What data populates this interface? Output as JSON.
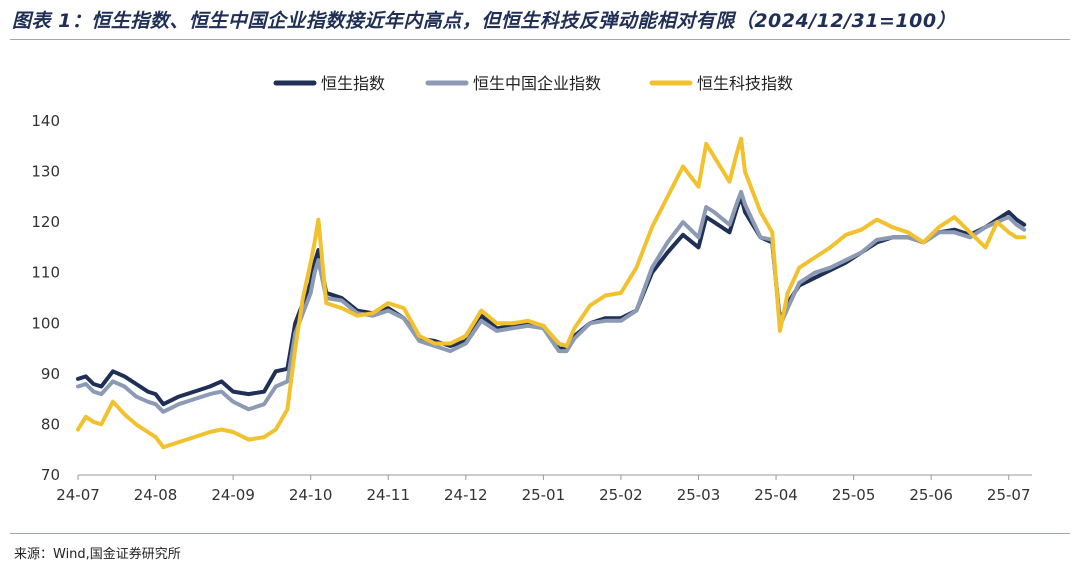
{
  "title": "图表 1：恒生指数、恒生中国企业指数接近年内高点，但恒生科技反弹动能相对有限（2024/12/31=100）",
  "source": "来源：Wind,国金证券研究所",
  "colors": {
    "hsi": "#1f2f56",
    "hscei": "#8c9bb3",
    "hstech": "#f2c12e",
    "axis": "#999999"
  },
  "chart_data": {
    "type": "line",
    "title": "图表 1：恒生指数、恒生中国企业指数接近年内高点，但恒生科技反弹动能相对有限（2024/12/31=100）",
    "xlabel": "",
    "ylabel": "",
    "ylim": [
      70,
      140
    ],
    "yticks": [
      70,
      80,
      90,
      100,
      110,
      120,
      130,
      140
    ],
    "xlim": [
      0,
      12.3
    ],
    "x_tick_positions": [
      0,
      1,
      2,
      3,
      4,
      5,
      6,
      7,
      8,
      9,
      10,
      11,
      12
    ],
    "x_tick_labels": [
      "24-07",
      "24-08",
      "24-09",
      "24-10",
      "24-11",
      "24-12",
      "25-01",
      "25-02",
      "25-03",
      "25-04",
      "25-05",
      "25-06",
      "25-07"
    ],
    "legend": "top-center",
    "series": [
      {
        "name": "恒生指数",
        "color": "#1f2f56",
        "x": [
          0,
          0.1,
          0.2,
          0.3,
          0.45,
          0.6,
          0.75,
          0.9,
          1.0,
          1.1,
          1.3,
          1.5,
          1.7,
          1.85,
          2.0,
          2.2,
          2.4,
          2.55,
          2.7,
          2.8,
          2.9,
          3.0,
          3.05,
          3.1,
          3.2,
          3.4,
          3.6,
          3.8,
          4.0,
          4.2,
          4.4,
          4.6,
          4.8,
          5.0,
          5.2,
          5.4,
          5.6,
          5.8,
          6.0,
          6.2,
          6.3,
          6.4,
          6.6,
          6.8,
          7.0,
          7.2,
          7.4,
          7.6,
          7.8,
          8.0,
          8.1,
          8.2,
          8.4,
          8.5,
          8.55,
          8.6,
          8.8,
          8.95,
          9.05,
          9.15,
          9.3,
          9.5,
          9.7,
          9.9,
          10.1,
          10.3,
          10.5,
          10.7,
          10.9,
          11.1,
          11.3,
          11.5,
          11.7,
          11.85,
          12.0,
          12.1,
          12.2
        ],
        "values": [
          89,
          89.5,
          88,
          87.5,
          90.5,
          89.5,
          88,
          86.5,
          86,
          84,
          85.5,
          86.5,
          87.5,
          88.5,
          86.5,
          86,
          86.5,
          90.5,
          91,
          100,
          104,
          108,
          112,
          114.5,
          106,
          105,
          102.5,
          102,
          103,
          101,
          97,
          96.5,
          95.5,
          96.5,
          101.5,
          99,
          99.5,
          100,
          99.5,
          95,
          95,
          97.5,
          100,
          101,
          101,
          102.5,
          110,
          114,
          117.5,
          115,
          121,
          120,
          118,
          123,
          125,
          122,
          117,
          116,
          100.5,
          104,
          107.5,
          109,
          110.5,
          112,
          114,
          116,
          117,
          117,
          116,
          118,
          118.5,
          117.5,
          119,
          120.5,
          122,
          120.5,
          119.5
        ]
      },
      {
        "name": "恒生中国企业指数",
        "color": "#8c9bb3",
        "x": [
          0,
          0.1,
          0.2,
          0.3,
          0.45,
          0.6,
          0.75,
          0.9,
          1.0,
          1.1,
          1.3,
          1.5,
          1.7,
          1.85,
          2.0,
          2.2,
          2.4,
          2.55,
          2.7,
          2.8,
          2.9,
          3.0,
          3.05,
          3.1,
          3.2,
          3.4,
          3.6,
          3.8,
          4.0,
          4.2,
          4.4,
          4.6,
          4.8,
          5.0,
          5.2,
          5.4,
          5.6,
          5.8,
          6.0,
          6.2,
          6.3,
          6.4,
          6.6,
          6.8,
          7.0,
          7.2,
          7.4,
          7.6,
          7.8,
          8.0,
          8.1,
          8.2,
          8.4,
          8.5,
          8.55,
          8.6,
          8.8,
          8.95,
          9.05,
          9.15,
          9.3,
          9.5,
          9.7,
          9.9,
          10.1,
          10.3,
          10.5,
          10.7,
          10.9,
          11.1,
          11.3,
          11.5,
          11.7,
          11.85,
          12.0,
          12.1,
          12.2
        ],
        "values": [
          87.5,
          88,
          86.5,
          86,
          88.5,
          87.5,
          85.5,
          84.5,
          84,
          82.5,
          84,
          85,
          86,
          86.5,
          84.5,
          83,
          84,
          87.5,
          88.5,
          98,
          102,
          106,
          110,
          112.5,
          105,
          104.5,
          102,
          101.5,
          102.5,
          101,
          96.5,
          95.5,
          94.5,
          96,
          100.5,
          98.5,
          99,
          99.5,
          99,
          94.5,
          94.5,
          97,
          100,
          100.5,
          100.5,
          102.5,
          111,
          116,
          120,
          117,
          123,
          122,
          119.5,
          124,
          126,
          123.5,
          117,
          116.5,
          99.5,
          103,
          108,
          110,
          111,
          112.5,
          114,
          116.5,
          117,
          117,
          116,
          118,
          118,
          117,
          119,
          120,
          121,
          119.5,
          118.5
        ]
      },
      {
        "name": "恒生科技指数",
        "color": "#f2c12e",
        "x": [
          0,
          0.1,
          0.2,
          0.3,
          0.45,
          0.6,
          0.75,
          0.9,
          1.0,
          1.1,
          1.3,
          1.5,
          1.7,
          1.85,
          2.0,
          2.2,
          2.4,
          2.55,
          2.7,
          2.8,
          2.9,
          3.0,
          3.05,
          3.1,
          3.2,
          3.4,
          3.6,
          3.8,
          4.0,
          4.2,
          4.4,
          4.6,
          4.8,
          5.0,
          5.2,
          5.4,
          5.6,
          5.8,
          6.0,
          6.2,
          6.3,
          6.4,
          6.6,
          6.8,
          7.0,
          7.2,
          7.4,
          7.6,
          7.8,
          8.0,
          8.1,
          8.2,
          8.4,
          8.5,
          8.55,
          8.6,
          8.8,
          8.95,
          9.05,
          9.15,
          9.3,
          9.5,
          9.7,
          9.9,
          10.1,
          10.3,
          10.5,
          10.7,
          10.9,
          11.1,
          11.3,
          11.5,
          11.7,
          11.85,
          12.0,
          12.1,
          12.2
        ],
        "values": [
          79,
          81.5,
          80.5,
          80,
          84.5,
          82,
          80,
          78.5,
          77.5,
          75.5,
          76.5,
          77.5,
          78.5,
          79,
          78.5,
          77,
          77.5,
          79,
          83,
          95,
          105,
          112,
          116,
          120.5,
          104,
          103,
          101.5,
          102,
          104,
          103,
          97.5,
          96,
          96,
          97.5,
          102.5,
          100,
          100,
          100.5,
          99.5,
          96,
          95.5,
          99,
          103.5,
          105.5,
          106,
          111,
          119,
          125,
          131,
          127,
          135.5,
          133,
          128,
          134,
          136.5,
          130,
          122,
          118,
          98.5,
          106,
          111,
          113,
          115,
          117.5,
          118.5,
          120.5,
          119,
          118,
          116,
          119,
          121,
          118,
          115,
          120,
          118,
          117,
          117
        ]
      }
    ]
  }
}
